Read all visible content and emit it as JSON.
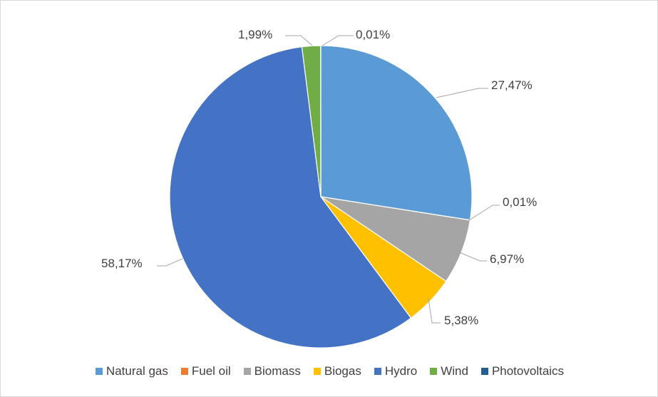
{
  "chart_data": {
    "type": "pie",
    "title": "",
    "categories": [
      "Natural gas",
      "Fuel oil",
      "Biomass",
      "Biogas",
      "Hydro",
      "Wind",
      "Photovoltaics"
    ],
    "values": [
      27.47,
      0.01,
      6.97,
      5.38,
      58.17,
      1.99,
      0.01
    ],
    "value_labels": [
      "27,47%",
      "0,01%",
      "6,97%",
      "5,38%",
      "58,17%",
      "1,99%",
      "0,01%"
    ],
    "colors": [
      "#5b9bd5",
      "#ed7d31",
      "#a5a5a5",
      "#ffc000",
      "#4472c4",
      "#70ad47",
      "#255e91"
    ],
    "unit": "%",
    "legend_position": "bottom",
    "start_angle": "top, clockwise"
  }
}
